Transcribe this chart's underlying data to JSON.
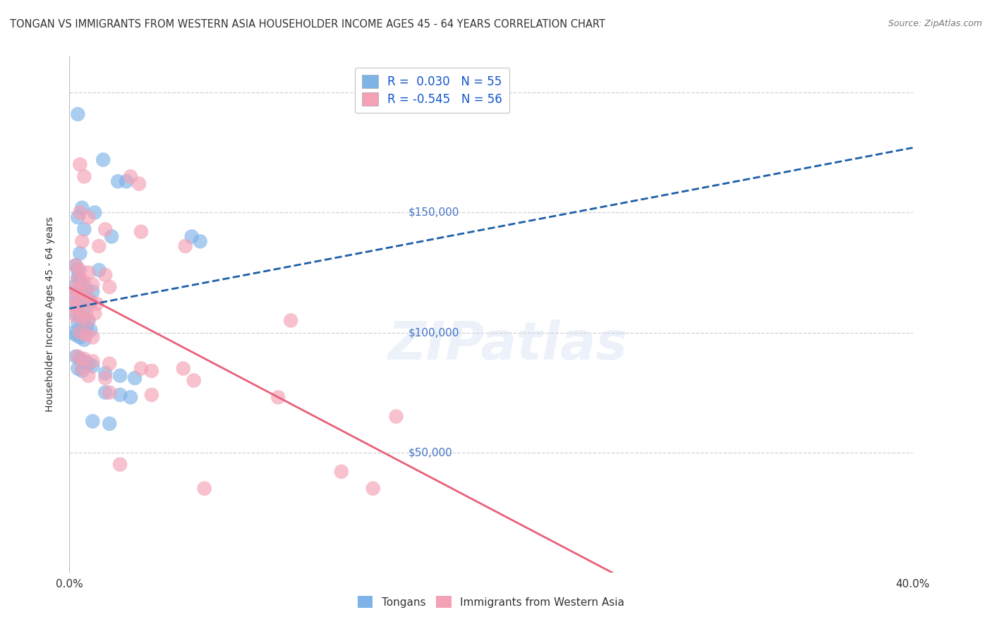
{
  "title": "TONGAN VS IMMIGRANTS FROM WESTERN ASIA HOUSEHOLDER INCOME AGES 45 - 64 YEARS CORRELATION CHART",
  "source": "Source: ZipAtlas.com",
  "ylabel": "Householder Income Ages 45 - 64 years",
  "xlim": [
    0.0,
    0.4
  ],
  "ylim": [
    0,
    215000
  ],
  "yticks": [
    0,
    50000,
    100000,
    150000,
    200000
  ],
  "xticks": [
    0.0,
    0.05,
    0.1,
    0.15,
    0.2,
    0.25,
    0.3,
    0.35,
    0.4
  ],
  "tongan_color": "#7EB3E8",
  "western_asia_color": "#F4A0B5",
  "trendline_tongan_color": "#1E5FA8",
  "trendline_wa_color": "#E8607A",
  "background_color": "#FFFFFF",
  "tick_label_color_right": "#4472C4",
  "watermark": "ZIPatlas",
  "tongan_x": [
    0.004,
    0.016,
    0.023,
    0.027,
    0.006,
    0.012,
    0.004,
    0.007,
    0.02,
    0.005,
    0.003,
    0.004,
    0.004,
    0.005,
    0.006,
    0.002,
    0.008,
    0.011,
    0.003,
    0.006,
    0.009,
    0.01,
    0.002,
    0.004,
    0.007,
    0.014,
    0.062,
    0.058,
    0.003,
    0.005,
    0.007,
    0.009,
    0.004,
    0.006,
    0.008,
    0.01,
    0.002,
    0.003,
    0.005,
    0.007,
    0.003,
    0.005,
    0.007,
    0.009,
    0.011,
    0.004,
    0.006,
    0.017,
    0.024,
    0.031,
    0.017,
    0.024,
    0.029,
    0.011,
    0.019
  ],
  "tongan_y": [
    191000,
    172000,
    163000,
    163000,
    152000,
    150000,
    148000,
    143000,
    140000,
    133000,
    128000,
    126000,
    123000,
    122000,
    120000,
    119000,
    118000,
    117000,
    116000,
    115000,
    114000,
    113000,
    112000,
    111000,
    110000,
    126000,
    138000,
    140000,
    108000,
    107000,
    106000,
    105000,
    104000,
    103000,
    102000,
    101000,
    100000,
    99000,
    98000,
    97000,
    90000,
    89000,
    88000,
    87000,
    86000,
    85000,
    84000,
    83000,
    82000,
    81000,
    75000,
    74000,
    73000,
    63000,
    62000
  ],
  "wa_x": [
    0.005,
    0.007,
    0.029,
    0.033,
    0.005,
    0.009,
    0.017,
    0.034,
    0.006,
    0.014,
    0.055,
    0.003,
    0.005,
    0.009,
    0.017,
    0.004,
    0.007,
    0.011,
    0.019,
    0.003,
    0.005,
    0.008,
    0.002,
    0.006,
    0.01,
    0.013,
    0.002,
    0.004,
    0.008,
    0.012,
    0.003,
    0.006,
    0.009,
    0.005,
    0.008,
    0.011,
    0.105,
    0.004,
    0.007,
    0.011,
    0.019,
    0.006,
    0.034,
    0.039,
    0.054,
    0.009,
    0.017,
    0.059,
    0.019,
    0.039,
    0.099,
    0.155,
    0.024,
    0.129,
    0.064,
    0.144
  ],
  "wa_y": [
    170000,
    165000,
    165000,
    162000,
    150000,
    148000,
    143000,
    142000,
    138000,
    136000,
    136000,
    128000,
    126000,
    125000,
    124000,
    122000,
    121000,
    120000,
    119000,
    118000,
    117000,
    116000,
    115000,
    114000,
    113000,
    112000,
    111000,
    110000,
    109000,
    108000,
    107000,
    106000,
    105000,
    100000,
    99000,
    98000,
    105000,
    90000,
    89000,
    88000,
    87000,
    85000,
    85000,
    84000,
    85000,
    82000,
    81000,
    80000,
    75000,
    74000,
    73000,
    65000,
    45000,
    42000,
    35000,
    35000
  ]
}
